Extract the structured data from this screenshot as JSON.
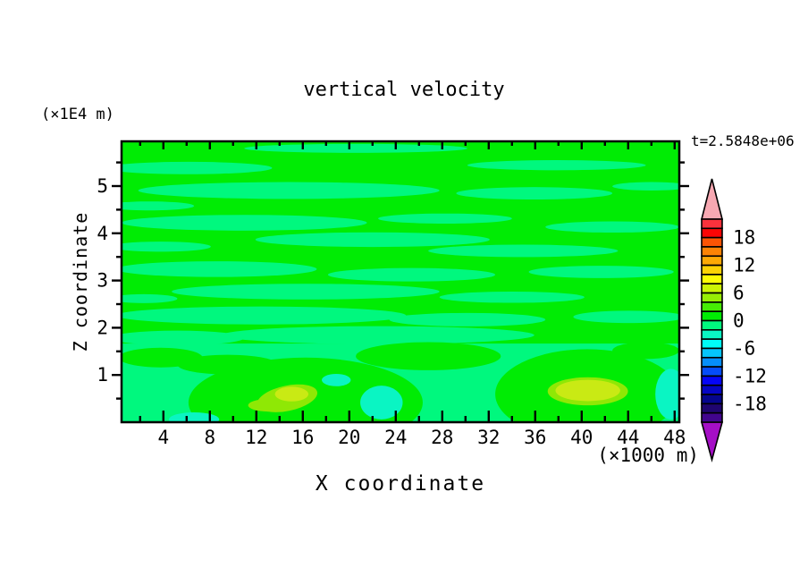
{
  "figure": {
    "title": "vertical velocity",
    "y_axis_unit": "(×1E4 m)",
    "x_axis_unit": "(×1000 m)",
    "time_label": "t=2.5848e+06",
    "x_axis_label": "X coordinate",
    "y_axis_label": "Z coordinate"
  },
  "chart_data": {
    "type": "heatmap",
    "title": "vertical velocity",
    "xlabel": "X coordinate",
    "ylabel": "Z coordinate",
    "x_unit": "(×1000 m)",
    "y_unit": "(×1E4 m)",
    "annotation": "t=2.5848e+06",
    "grid": false,
    "legend_position": "right-colorbar",
    "x_range": [
      0.4,
      48.4
    ],
    "x_major_ticks": [
      4,
      8,
      12,
      16,
      20,
      24,
      28,
      32,
      36,
      40,
      44,
      48
    ],
    "x_minor_ticks": [
      2,
      6,
      10,
      14,
      18,
      22,
      26,
      30,
      34,
      38,
      42,
      46
    ],
    "y_range": [
      0,
      5.95
    ],
    "y_major_ticks": [
      1,
      2,
      3,
      4,
      5
    ],
    "y_minor_ticks": [
      0.5,
      1.5,
      2.5,
      3.5,
      4.5,
      5.5
    ],
    "colorbar": {
      "labels": [
        18,
        12,
        6,
        0,
        -6,
        -12,
        -18
      ],
      "label_boundary_index": [
        2,
        5,
        8,
        11,
        14,
        17,
        20
      ],
      "value_top": 22,
      "value_step_per_segment": -2,
      "over_range_arrow_color": "#F7A8B2",
      "under_range_arrow_color": "#A50FC6",
      "segments_top_to_bottom": [
        "#FA323C",
        "#FB0505",
        "#FB5405",
        "#FB8305",
        "#FCA905",
        "#FCD205",
        "#FCFC05",
        "#CDF405",
        "#97EE05",
        "#46EC05",
        "#00EC04",
        "#00F87E",
        "#0AF5C3",
        "#00FCF8",
        "#05C5FC",
        "#058EFB",
        "#054CF9",
        "#0505F7",
        "#0505C3",
        "#05058D",
        "#1F0570",
        "#42058E"
      ]
    },
    "field": {
      "description": "Near-zero vertical velocity field: wavy horizontal bands alternating between 0..2 (green) and -2..0 (spring green); weak updraft maxima (~4..8) near the bottom boundary at x≈14.7 and x≈40.5; weak downdraft patches (~-4..-2) near the bottom at x≈22.8 and near the right edge.",
      "background": "green",
      "colors": {
        "green": "#00EC04",
        "mint": "#00F87E",
        "aqua": "#0AF5C3",
        "chartreuse": "#8FE805",
        "yellow_green": "#C9EA14"
      },
      "features": [
        {
          "kind": "updraft-maximum",
          "x": 14.7,
          "z": 0.48,
          "approx_peak_level": 6
        },
        {
          "kind": "updraft-maximum",
          "x": 40.5,
          "z": 0.48,
          "approx_peak_level": 6
        },
        {
          "kind": "downdraft-patch",
          "x": 22.8,
          "z": 0.45,
          "approx_min_level": -3
        },
        {
          "kind": "downdraft-patch",
          "x": 47.9,
          "z": 0.55,
          "approx_min_level": -3
        },
        {
          "kind": "banded-near-zero-field",
          "levels": "-2..2"
        }
      ],
      "shapes": [
        {
          "t": "e",
          "c": "mint",
          "cx": 0.42,
          "cy": 0.025,
          "rx": 0.2,
          "ry": 0.016
        },
        {
          "t": "e",
          "c": "mint",
          "cx": 0.12,
          "cy": 0.095,
          "rx": 0.15,
          "ry": 0.022
        },
        {
          "t": "e",
          "c": "mint",
          "cx": 0.78,
          "cy": 0.085,
          "rx": 0.16,
          "ry": 0.018
        },
        {
          "t": "e",
          "c": "mint",
          "cx": 0.3,
          "cy": 0.175,
          "rx": 0.27,
          "ry": 0.03
        },
        {
          "t": "e",
          "c": "mint",
          "cx": 0.74,
          "cy": 0.185,
          "rx": 0.14,
          "ry": 0.022
        },
        {
          "t": "e",
          "c": "mint",
          "cx": 0.95,
          "cy": 0.16,
          "rx": 0.07,
          "ry": 0.015
        },
        {
          "t": "e",
          "c": "mint",
          "cx": 0.05,
          "cy": 0.23,
          "rx": 0.08,
          "ry": 0.016
        },
        {
          "t": "e",
          "c": "mint",
          "cx": 0.22,
          "cy": 0.29,
          "rx": 0.22,
          "ry": 0.028
        },
        {
          "t": "e",
          "c": "mint",
          "cx": 0.58,
          "cy": 0.275,
          "rx": 0.12,
          "ry": 0.018
        },
        {
          "t": "e",
          "c": "mint",
          "cx": 0.88,
          "cy": 0.305,
          "rx": 0.12,
          "ry": 0.02
        },
        {
          "t": "e",
          "c": "mint",
          "cx": 0.45,
          "cy": 0.35,
          "rx": 0.21,
          "ry": 0.026
        },
        {
          "t": "e",
          "c": "mint",
          "cx": 0.07,
          "cy": 0.375,
          "rx": 0.09,
          "ry": 0.018
        },
        {
          "t": "e",
          "c": "mint",
          "cx": 0.72,
          "cy": 0.39,
          "rx": 0.17,
          "ry": 0.022
        },
        {
          "t": "e",
          "c": "mint",
          "cx": 0.17,
          "cy": 0.455,
          "rx": 0.18,
          "ry": 0.028
        },
        {
          "t": "e",
          "c": "mint",
          "cx": 0.52,
          "cy": 0.475,
          "rx": 0.15,
          "ry": 0.024
        },
        {
          "t": "e",
          "c": "mint",
          "cx": 0.86,
          "cy": 0.465,
          "rx": 0.13,
          "ry": 0.022
        },
        {
          "t": "e",
          "c": "mint",
          "cx": 0.33,
          "cy": 0.535,
          "rx": 0.24,
          "ry": 0.028
        },
        {
          "t": "e",
          "c": "mint",
          "cx": 0.7,
          "cy": 0.555,
          "rx": 0.13,
          "ry": 0.02
        },
        {
          "t": "e",
          "c": "mint",
          "cx": 0.04,
          "cy": 0.56,
          "rx": 0.06,
          "ry": 0.016
        },
        {
          "t": "e",
          "c": "mint",
          "cx": 0.25,
          "cy": 0.62,
          "rx": 0.26,
          "ry": 0.032
        },
        {
          "t": "e",
          "c": "mint",
          "cx": 0.62,
          "cy": 0.635,
          "rx": 0.14,
          "ry": 0.024
        },
        {
          "t": "e",
          "c": "mint",
          "cx": 0.91,
          "cy": 0.625,
          "rx": 0.1,
          "ry": 0.022
        },
        {
          "t": "e",
          "c": "mint",
          "cx": 0.46,
          "cy": 0.69,
          "rx": 0.28,
          "ry": 0.032
        },
        {
          "t": "e",
          "c": "mint",
          "cx": 0.1,
          "cy": 0.7,
          "rx": 0.12,
          "ry": 0.026
        },
        {
          "t": "r",
          "c": "mint",
          "x": 0,
          "y": 0.72,
          "w": 1,
          "h": 0.28
        },
        {
          "t": "e",
          "c": "green",
          "cx": 0.33,
          "cy": 0.93,
          "rx": 0.21,
          "ry": 0.16
        },
        {
          "t": "e",
          "c": "green",
          "cx": 0.835,
          "cy": 0.9,
          "rx": 0.165,
          "ry": 0.16
        },
        {
          "t": "e",
          "c": "green",
          "cx": 0.55,
          "cy": 0.765,
          "rx": 0.13,
          "ry": 0.05
        },
        {
          "t": "e",
          "c": "green",
          "cx": 0.07,
          "cy": 0.77,
          "rx": 0.075,
          "ry": 0.035
        },
        {
          "t": "e",
          "c": "green",
          "cx": 0.94,
          "cy": 0.745,
          "rx": 0.06,
          "ry": 0.03
        },
        {
          "t": "e",
          "c": "green",
          "cx": 0.19,
          "cy": 0.795,
          "rx": 0.09,
          "ry": 0.035
        },
        {
          "t": "e",
          "c": "aqua",
          "cx": 0.466,
          "cy": 0.93,
          "rx": 0.038,
          "ry": 0.06
        },
        {
          "t": "e",
          "c": "aqua",
          "cx": 0.985,
          "cy": 0.9,
          "rx": 0.028,
          "ry": 0.09
        },
        {
          "t": "e",
          "c": "aqua",
          "cx": 0.385,
          "cy": 0.85,
          "rx": 0.026,
          "ry": 0.022
        },
        {
          "t": "e",
          "c": "aqua",
          "cx": 0.13,
          "cy": 0.99,
          "rx": 0.045,
          "ry": 0.025
        },
        {
          "t": "e",
          "c": "chartreuse",
          "cx": 0.297,
          "cy": 0.915,
          "rx": 0.055,
          "ry": 0.045,
          "rot": -12
        },
        {
          "t": "e",
          "c": "chartreuse",
          "cx": 0.262,
          "cy": 0.94,
          "rx": 0.035,
          "ry": 0.022
        },
        {
          "t": "e",
          "c": "yellow_green",
          "cx": 0.305,
          "cy": 0.9,
          "rx": 0.03,
          "ry": 0.026
        },
        {
          "t": "e",
          "c": "chartreuse",
          "cx": 0.836,
          "cy": 0.89,
          "rx": 0.072,
          "ry": 0.05
        },
        {
          "t": "e",
          "c": "yellow_green",
          "cx": 0.836,
          "cy": 0.887,
          "rx": 0.058,
          "ry": 0.038
        }
      ]
    }
  }
}
